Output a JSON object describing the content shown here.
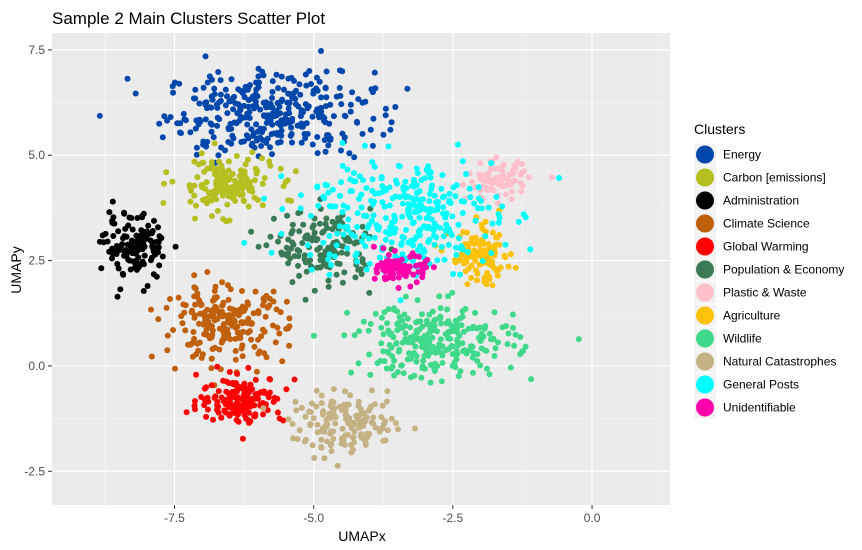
{
  "chart_data": {
    "type": "scatter",
    "title": "Sample 2 Main Clusters Scatter Plot",
    "xlabel": "UMAPx",
    "ylabel": "UMAPy",
    "xlim": [
      -9.7,
      1.4
    ],
    "ylim": [
      -3.3,
      7.9
    ],
    "x_ticks": [
      -7.5,
      -5.0,
      -2.5,
      0.0
    ],
    "x_tick_labels": [
      "-7.5",
      "-5.0",
      "-2.5",
      "0.0"
    ],
    "y_ticks": [
      -2.5,
      0.0,
      2.5,
      5.0,
      7.5
    ],
    "y_tick_labels": [
      "-2.5",
      "0.0",
      "2.5",
      "5.0",
      "7.5"
    ],
    "grid": true,
    "panel_background": "#ebebeb",
    "legend": {
      "title": "Clusters",
      "position": "right"
    },
    "series": [
      {
        "name": "Energy",
        "color": "#0047ab",
        "center": [
          -5.8,
          6.0
        ],
        "spread": [
          1.7,
          0.9
        ],
        "count": 340
      },
      {
        "name": "Carbon [emissions]",
        "color": "#b5bf1f",
        "center": [
          -6.6,
          4.3
        ],
        "spread": [
          0.8,
          0.6
        ],
        "count": 160
      },
      {
        "name": "Administration",
        "color": "#000000",
        "center": [
          -8.2,
          2.8
        ],
        "spread": [
          0.5,
          0.7
        ],
        "count": 130
      },
      {
        "name": "Climate Science",
        "color": "#c0600c",
        "center": [
          -6.6,
          1.0
        ],
        "spread": [
          1.0,
          0.8
        ],
        "count": 210
      },
      {
        "name": "Global Warming",
        "color": "#ff0000",
        "center": [
          -6.3,
          -0.8
        ],
        "spread": [
          0.7,
          0.5
        ],
        "count": 160
      },
      {
        "name": "Population & Economy",
        "color": "#3a7a56",
        "center": [
          -4.8,
          2.8
        ],
        "spread": [
          0.8,
          0.8
        ],
        "count": 150
      },
      {
        "name": "Plastic & Waste",
        "color": "#ffc0cb",
        "center": [
          -1.7,
          4.4
        ],
        "spread": [
          0.5,
          0.4
        ],
        "count": 90
      },
      {
        "name": "Agriculture",
        "color": "#ffc20a",
        "center": [
          -2.0,
          2.6
        ],
        "spread": [
          0.5,
          0.6
        ],
        "count": 110
      },
      {
        "name": "Wildlife",
        "color": "#40d98c",
        "center": [
          -2.8,
          0.6
        ],
        "spread": [
          1.3,
          0.8
        ],
        "count": 260
      },
      {
        "name": "Natural Catastrophes",
        "color": "#c4b285",
        "center": [
          -4.4,
          -1.4
        ],
        "spread": [
          0.9,
          0.6
        ],
        "count": 160
      },
      {
        "name": "General Posts",
        "color": "#00ffff",
        "center": [
          -3.5,
          3.6
        ],
        "spread": [
          1.6,
          1.3
        ],
        "count": 320
      },
      {
        "name": "Unidentifiable",
        "color": "#ff00aa",
        "center": [
          -3.4,
          2.3
        ],
        "spread": [
          0.4,
          0.3
        ],
        "count": 90
      }
    ]
  }
}
